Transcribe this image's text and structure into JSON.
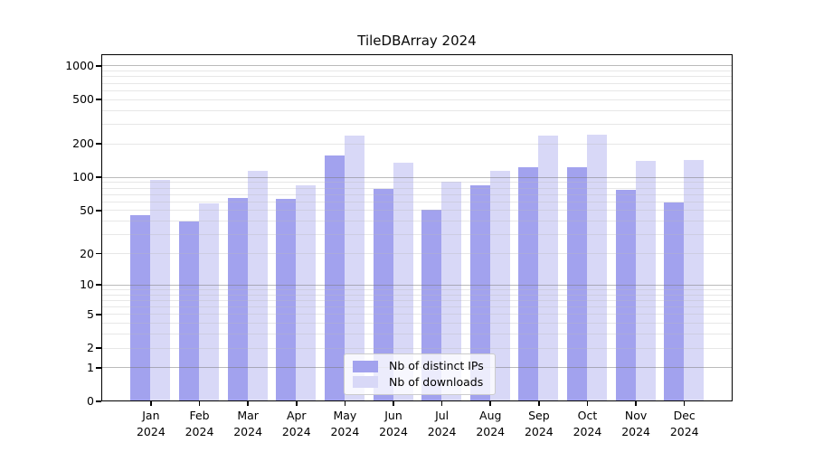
{
  "title": "TileDBArray 2024",
  "colors": {
    "ips_bar": "#a2a2ee",
    "downloads_bar": "#d8d8f7",
    "grid_major": "rgba(120,120,120,0.5)",
    "grid_minor": "rgba(185,185,185,0.35)",
    "axis_frame": "#000000",
    "text": "#000000",
    "legend_bg": "rgba(255,255,255,0.8)",
    "legend_border": "#cccccc"
  },
  "x_axis": {
    "months": [
      "Jan",
      "Feb",
      "Mar",
      "Apr",
      "May",
      "Jun",
      "Jul",
      "Aug",
      "Sep",
      "Oct",
      "Nov",
      "Dec"
    ],
    "year": "2024"
  },
  "y_axis": {
    "tick_labels": [
      "0",
      "1",
      "2",
      "5",
      "10",
      "20",
      "50",
      "100",
      "200",
      "500",
      "1000"
    ],
    "scale": "log10(value+1)",
    "max": 1000
  },
  "chart_data": {
    "type": "bar",
    "title": "TileDBArray 2024",
    "categories": [
      "Jan 2024",
      "Feb 2024",
      "Mar 2024",
      "Apr 2024",
      "May 2024",
      "Jun 2024",
      "Jul 2024",
      "Aug 2024",
      "Sep 2024",
      "Oct 2024",
      "Nov 2024",
      "Dec 2024"
    ],
    "series": [
      {
        "name": "Nb of distinct IPs",
        "color": "#a2a2ee",
        "values": [
          46,
          40,
          66,
          65,
          159,
          79,
          51,
          85,
          125,
          124,
          78,
          60
        ]
      },
      {
        "name": "Nb of downloads",
        "color": "#d8d8f7",
        "values": [
          95,
          59,
          115,
          85,
          238,
          138,
          92,
          116,
          241,
          246,
          142,
          145
        ]
      }
    ],
    "xlabel": "",
    "ylabel": "",
    "yscale": "log1p",
    "yticks": [
      0,
      1,
      2,
      5,
      10,
      20,
      50,
      100,
      200,
      500,
      1000
    ],
    "ylim": [
      0,
      1000
    ],
    "grid": "horizontal major at powers of 10, minor at 2-9 per decade, drawn over bars",
    "legend_position": "lower center, inside plot"
  }
}
